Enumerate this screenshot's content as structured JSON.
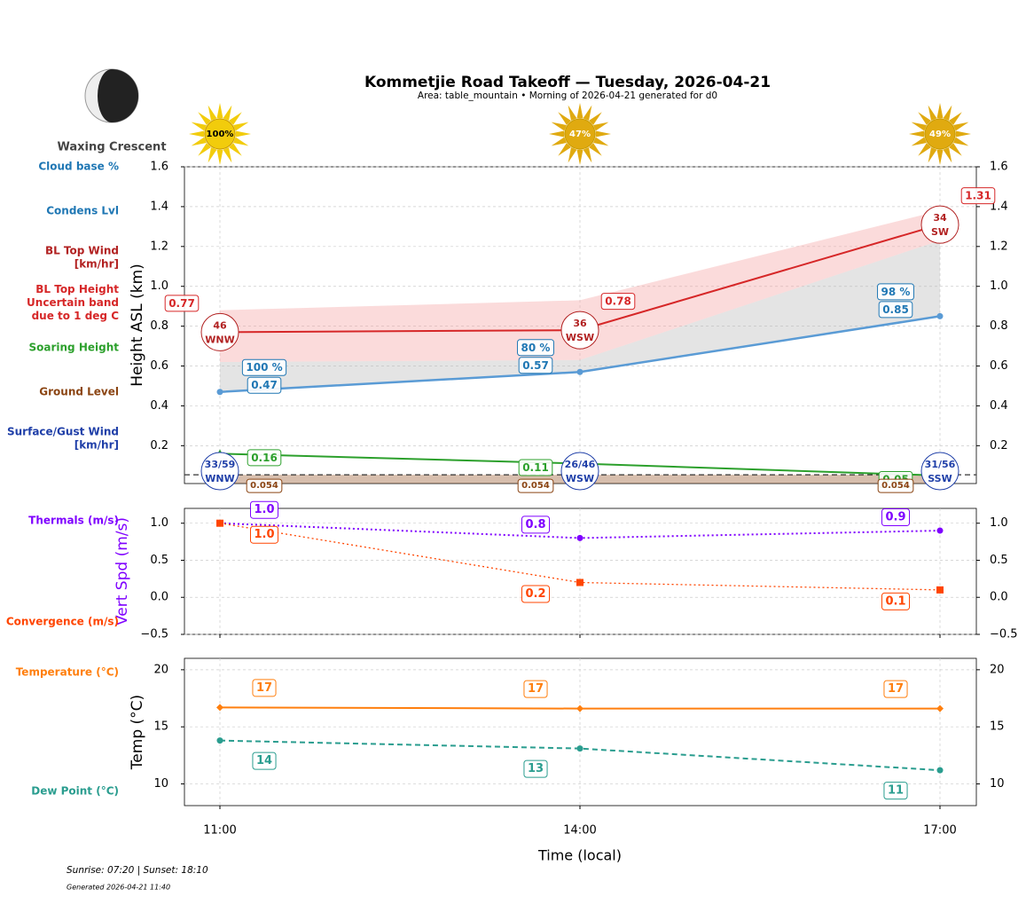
{
  "header": {
    "title": "Kommetjie Road Takeoff — Tuesday, 2026-04-21",
    "subtitle": "Area: table_mountain • Morning of 2026-04-21 generated for d0",
    "moon_phase": "Waxing Crescent",
    "sunshine": {
      "values": [
        100,
        47,
        49
      ],
      "value_labels": [
        "100%",
        "47%",
        "49%"
      ]
    }
  },
  "chart_data": [
    {
      "type": "line",
      "ylabel": "Height ASL (km)",
      "ylim": [
        0.01,
        1.6
      ],
      "yticks": [
        0.2,
        0.4,
        0.6,
        0.8,
        {
          "value": 1,
          "label": "1.0"
        },
        1.2,
        1.4,
        1.6
      ],
      "grid": true,
      "series": [
        {
          "name": "Cloud base %",
          "color": "#1f77b4",
          "values": [
            100,
            80,
            98
          ],
          "value_labels": [
            "100 %",
            "80 %",
            "98 %"
          ]
        },
        {
          "name": "Condens Lvl",
          "color": "#1f77b4",
          "values": [
            0.47,
            0.57,
            0.85
          ]
        },
        {
          "name": "BL Top Wind\n[km/hr]",
          "color": "#b22222",
          "values": [
            46,
            36,
            34
          ],
          "direction": [
            "WNW",
            "WSW",
            "SW"
          ]
        },
        {
          "name": "BL Top Height\nUncertain band\ndue to 1 deg C",
          "color": "#d62728",
          "values": [
            0.77,
            0.78,
            1.31
          ],
          "band_low": [
            0.62,
            0.63,
            1.23
          ],
          "band_high": [
            0.88,
            0.93,
            1.38
          ]
        },
        {
          "name": "Soaring Height",
          "color": "#2ca02c",
          "values": [
            0.16,
            0.11,
            0.05
          ]
        },
        {
          "name": "Ground Level",
          "color": "#8b4513",
          "values": [
            0.054,
            0.054,
            0.054
          ]
        },
        {
          "name": "Surface/Gust Wind\n[km/hr]",
          "color": "#1f3fa8",
          "values": [
            33,
            26,
            31
          ],
          "gust": [
            59,
            46,
            56
          ],
          "value_labels": [
            "33/59",
            "26/46",
            "31/56"
          ],
          "direction": [
            "WNW",
            "WSW",
            "SSW"
          ]
        }
      ]
    },
    {
      "type": "line",
      "ylabel": "Vert Spd (m/s)",
      "ylabel_color": "#7f00ff",
      "ylim": [
        -0.5,
        1.2
      ],
      "yticks": [
        {
          "value": -0.5,
          "label": "−0.5"
        },
        {
          "value": 0,
          "label": "0.0"
        },
        0.5,
        {
          "value": 1,
          "label": "1.0"
        }
      ],
      "grid": true,
      "series": [
        {
          "name": "Thermals (m/s)",
          "color": "#7f00ff",
          "values": [
            1.0,
            0.8,
            0.9
          ],
          "value_labels": [
            "1.0",
            "0.8",
            "0.9"
          ],
          "linestyle": "dotted",
          "marker": "circle"
        },
        {
          "name": "Convergence (m/s)",
          "color": "#ff4500",
          "values": [
            1.0,
            0.2,
            0.1
          ],
          "value_labels": [
            "1.0",
            "0.2",
            "0.1"
          ],
          "linestyle": "dotted",
          "marker": "square"
        }
      ]
    },
    {
      "type": "line",
      "ylabel": "Temp (°C)",
      "xlabel": "Time (local)",
      "categories": [
        "11:00",
        "14:00",
        "17:00"
      ],
      "ylim": [
        8.1,
        21
      ],
      "yticks": [
        10,
        15,
        20
      ],
      "grid": true,
      "series": [
        {
          "name": "Temperature (°C)",
          "color": "#ff7f0e",
          "values": [
            16.7,
            16.6,
            16.6
          ],
          "value_labels": [
            "17",
            "17",
            "17"
          ],
          "linestyle": "solid",
          "marker": "diamond"
        },
        {
          "name": "Dew Point (°C)",
          "color": "#2a9d8f",
          "values": [
            13.8,
            13.1,
            11.2
          ],
          "value_labels": [
            "14",
            "13",
            "11"
          ],
          "linestyle": "dashed",
          "marker": "circle"
        }
      ]
    }
  ],
  "footer": {
    "sun_times": "Sunrise: 07:20 | Sunset: 18:10",
    "generated": "Generated 2026-04-21 11:40"
  }
}
